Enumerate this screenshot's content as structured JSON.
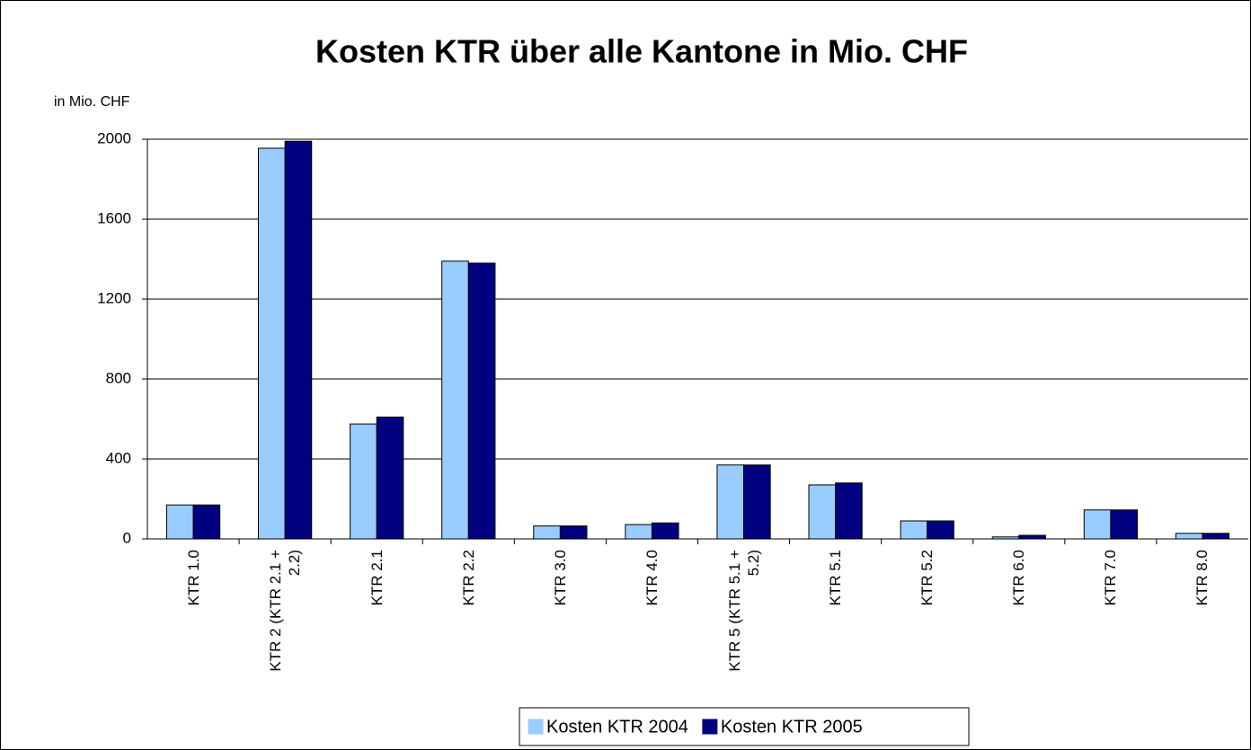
{
  "chart_data": {
    "type": "bar",
    "title": "Kosten KTR über alle Kantone in Mio. CHF",
    "y_label": "in Mio. CHF",
    "categories": [
      "KTR 1.0",
      "KTR 2 (KTR 2.1 + 2.2)",
      "KTR 2.1",
      "KTR 2.2",
      "KTR 3.0",
      "KTR 4.0",
      "KTR 5 (KTR 5.1 + 5.2)",
      "KTR 5.1",
      "KTR 5.2",
      "KTR 6.0",
      "KTR 7.0",
      "KTR 8.0"
    ],
    "series": [
      {
        "name": "Kosten KTR 2004",
        "color": "#99ccff",
        "values": [
          170,
          1955,
          575,
          1390,
          65,
          72,
          370,
          270,
          90,
          10,
          145,
          28
        ]
      },
      {
        "name": "Kosten KTR 2005",
        "color": "#000080",
        "values": [
          170,
          1990,
          610,
          1380,
          65,
          80,
          370,
          280,
          90,
          18,
          145,
          28
        ]
      }
    ],
    "ylim": [
      0,
      2000
    ],
    "yticks": [
      0,
      400,
      800,
      1200,
      1600,
      2000
    ],
    "grid": true,
    "legend": "bottom"
  }
}
